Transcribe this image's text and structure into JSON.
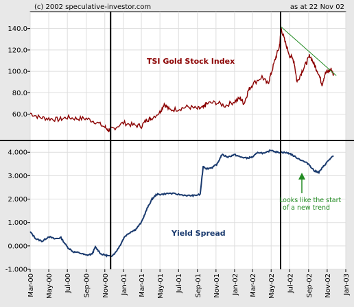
{
  "header": {
    "copyright": "(c) 2002 speculative-investor.com",
    "date_note": "as at 22 Nov 02"
  },
  "colors": {
    "gold_series": "#8b0000",
    "yield_series": "#1a3a6e",
    "trendline": "#228b22",
    "annotation": "#228b22",
    "plot_bg": "#ffffff",
    "page_bg": "#e8e8e8"
  },
  "chart_data": [
    {
      "type": "line",
      "series": [
        {
          "name": "TSI Gold Stock Index",
          "x": [
            "2000-03-01",
            "2000-04-01",
            "2000-05-01",
            "2000-06-01",
            "2000-07-01",
            "2000-08-01",
            "2000-09-01",
            "2000-10-01",
            "2000-11-01",
            "2000-11-15",
            "2000-12-01",
            "2001-01-01",
            "2001-02-01",
            "2001-03-01",
            "2001-03-20",
            "2001-04-01",
            "2001-05-01",
            "2001-05-15",
            "2001-06-01",
            "2001-07-01",
            "2001-08-01",
            "2001-09-01",
            "2001-09-20",
            "2001-10-01",
            "2001-11-01",
            "2001-12-01",
            "2002-01-01",
            "2002-01-20",
            "2002-02-01",
            "2002-02-15",
            "2002-03-01",
            "2002-04-01",
            "2002-04-20",
            "2002-05-01",
            "2002-05-15",
            "2002-05-28",
            "2002-06-03",
            "2002-06-15",
            "2002-07-01",
            "2002-07-15",
            "2002-07-25",
            "2002-08-10",
            "2002-08-25",
            "2002-09-05",
            "2002-09-20",
            "2002-10-01",
            "2002-10-15",
            "2002-10-25",
            "2002-11-05",
            "2002-11-15",
            "2002-11-22"
          ],
          "values": [
            61,
            57,
            56,
            55,
            57,
            56,
            56,
            53,
            48,
            45,
            47,
            52,
            50,
            49,
            55,
            56,
            62,
            70,
            64,
            65,
            67,
            65,
            66,
            70,
            71,
            68,
            72,
            75,
            70,
            82,
            88,
            95,
            88,
            98,
            112,
            123,
            140,
            128,
            115,
            110,
            90,
            100,
            108,
            115,
            106,
            100,
            88,
            98,
            100,
            102,
            96
          ]
        }
      ],
      "ylim": [
        40,
        150
      ],
      "yticks": [
        "60.0",
        "80.0",
        "100.0",
        "120.0",
        "140.0"
      ],
      "trendline": {
        "x": [
          "2002-06-01",
          "2002-12-01"
        ],
        "y": [
          142,
          96
        ]
      },
      "vertical_markers": [
        "2000-11-20",
        "2002-06-01"
      ],
      "annotations": [
        {
          "text": "TSI Gold Stock Index"
        }
      ]
    },
    {
      "type": "line",
      "series": [
        {
          "name": "Yield Spread",
          "x": [
            "2000-03-01",
            "2000-03-20",
            "2000-04-10",
            "2000-05-01",
            "2000-05-20",
            "2000-06-10",
            "2000-07-01",
            "2000-07-20",
            "2000-08-10",
            "2000-09-01",
            "2000-09-20",
            "2000-10-01",
            "2000-10-20",
            "2000-11-05",
            "2000-11-20",
            "2000-12-05",
            "2000-12-20",
            "2001-01-05",
            "2001-01-25",
            "2001-02-10",
            "2001-03-01",
            "2001-03-20",
            "2001-04-05",
            "2001-04-20",
            "2001-05-05",
            "2001-06-01",
            "2001-07-01",
            "2001-08-01",
            "2001-08-20",
            "2001-09-10",
            "2001-09-20",
            "2001-10-01",
            "2001-10-20",
            "2001-11-05",
            "2001-11-20",
            "2001-12-10",
            "2002-01-01",
            "2002-01-20",
            "2002-02-10",
            "2002-03-01",
            "2002-03-20",
            "2002-04-10",
            "2002-05-01",
            "2002-05-20",
            "2002-06-10",
            "2002-07-01",
            "2002-07-20",
            "2002-08-10",
            "2002-09-01",
            "2002-09-20",
            "2002-10-05",
            "2002-10-20",
            "2002-11-05",
            "2002-11-22"
          ],
          "values": [
            0.6,
            0.3,
            0.2,
            0.4,
            0.3,
            0.35,
            -0.05,
            -0.25,
            -0.3,
            -0.4,
            -0.35,
            -0.05,
            -0.35,
            -0.4,
            -0.45,
            -0.3,
            0.0,
            0.4,
            0.6,
            0.7,
            1.0,
            1.6,
            2.0,
            2.2,
            2.2,
            2.25,
            2.2,
            2.15,
            2.15,
            2.2,
            3.4,
            3.3,
            3.35,
            3.5,
            3.9,
            3.8,
            3.9,
            3.8,
            3.75,
            3.8,
            4.0,
            3.95,
            4.1,
            4.0,
            4.0,
            3.95,
            3.8,
            3.65,
            3.5,
            3.2,
            3.15,
            3.4,
            3.65,
            3.85
          ]
        }
      ],
      "ylim": [
        -1.0,
        4.3
      ],
      "yticks": [
        "4.000",
        "3.000",
        "2.000",
        "1.000",
        "0.000",
        "-1.000"
      ],
      "xlim": [
        "2000-03-01",
        "2003-01-01"
      ],
      "xticks": [
        "Mar-00",
        "May-00",
        "Jul-00",
        "Sep-00",
        "Nov-00",
        "Jan-01",
        "Mar-01",
        "May-01",
        "Jul-01",
        "Sep-01",
        "Nov-01",
        "Jan-02",
        "Mar-02",
        "May-02",
        "Jul-02",
        "Sep-02",
        "Nov-02",
        "Jan-03"
      ],
      "annotations": [
        {
          "text": "Yield Spread"
        },
        {
          "text": "Looks like the start of a new trend"
        }
      ]
    }
  ],
  "labels": {
    "gold_label": "TSI Gold Stock Index",
    "yield_label": "Yield Spread",
    "anno_line1": "Looks like the start",
    "anno_line2": "of a new trend"
  }
}
